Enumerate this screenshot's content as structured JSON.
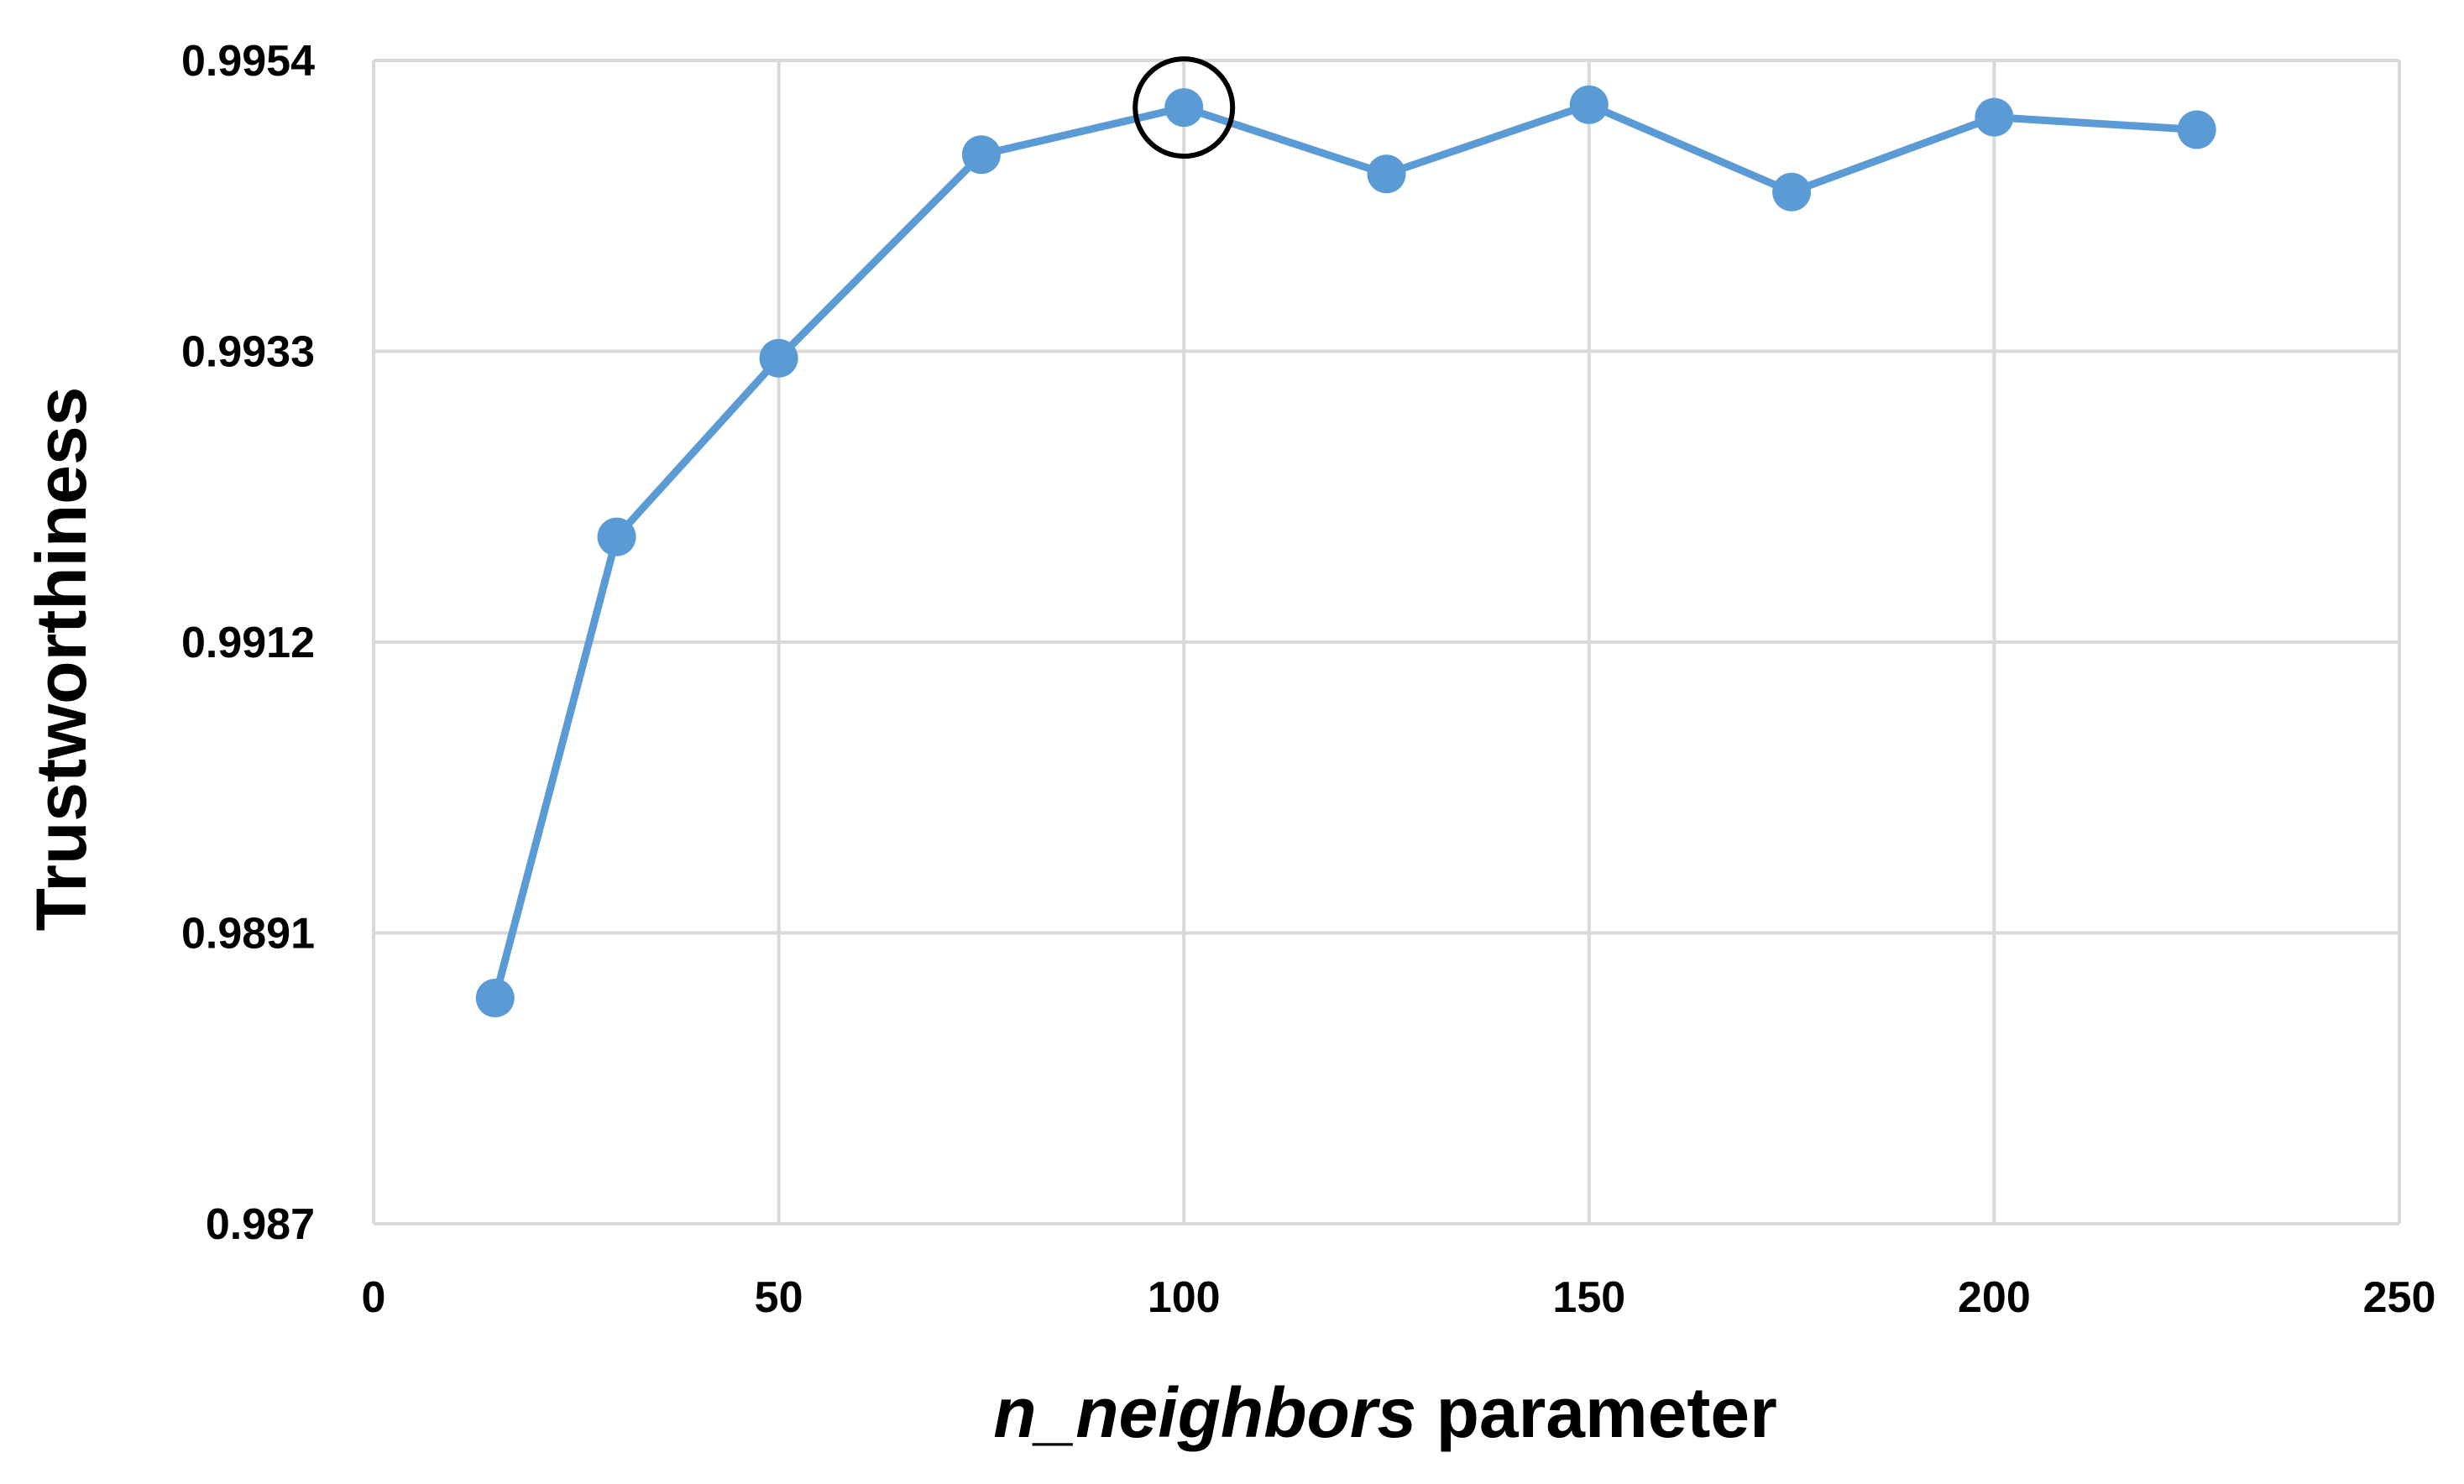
{
  "chart_data": {
    "type": "line",
    "title": "",
    "xlabel_italic": "n_neighbors",
    "xlabel_rest": " parameter",
    "ylabel": "Trustworthiness",
    "xlim": [
      0,
      250
    ],
    "ylim": [
      0.987,
      0.9954
    ],
    "x_ticks": [
      0,
      50,
      100,
      150,
      200,
      250
    ],
    "y_ticks": [
      0.987,
      0.9891,
      0.9912,
      0.9933,
      0.9954
    ],
    "x_tick_labels": [
      "0",
      "50",
      "100",
      "150",
      "200",
      "250"
    ],
    "y_tick_labels": [
      "0.987",
      "0.9891",
      "0.9912",
      "0.9933",
      "0.9954"
    ],
    "grid": true,
    "highlighted_x": 100,
    "series": [
      {
        "x": [
          15,
          30,
          50,
          75,
          100,
          125,
          150,
          175,
          200,
          225
        ],
        "y": [
          0.98863,
          0.99196,
          0.99325,
          0.99472,
          0.99506,
          0.99458,
          0.99508,
          0.99445,
          0.99499,
          0.9949
        ],
        "color": "#5b9bd5"
      }
    ]
  }
}
